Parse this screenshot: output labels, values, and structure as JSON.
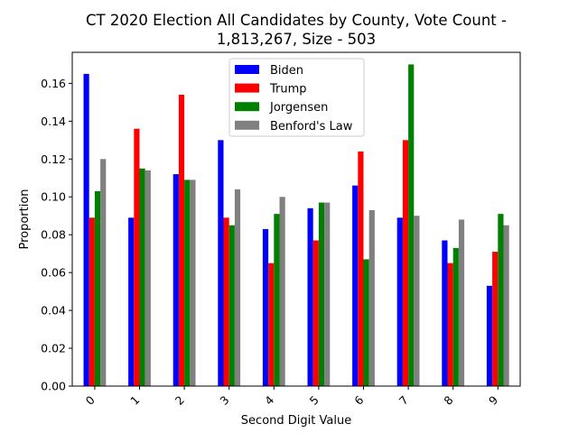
{
  "chart_data": {
    "type": "bar",
    "title": [
      "CT 2020 Election All Candidates by County, Vote Count -",
      "1,813,267, Size - 503"
    ],
    "xlabel": "Second Digit Value",
    "ylabel": "Proportion",
    "categories": [
      "0",
      "1",
      "2",
      "3",
      "4",
      "5",
      "6",
      "7",
      "8",
      "9"
    ],
    "ylim": [
      0,
      0.1764
    ],
    "yticks": [
      "0.00",
      "0.02",
      "0.04",
      "0.06",
      "0.08",
      "0.10",
      "0.12",
      "0.14",
      "0.16"
    ],
    "legend_position": "top-center",
    "series": [
      {
        "name": "Biden",
        "color": "#0000ff",
        "values": [
          0.165,
          0.089,
          0.112,
          0.13,
          0.083,
          0.094,
          0.106,
          0.089,
          0.077,
          0.053
        ]
      },
      {
        "name": "Trump",
        "color": "#ff0000",
        "values": [
          0.089,
          0.136,
          0.154,
          0.089,
          0.065,
          0.077,
          0.124,
          0.13,
          0.065,
          0.071
        ]
      },
      {
        "name": "Jorgensen",
        "color": "#008000",
        "values": [
          0.103,
          0.115,
          0.109,
          0.085,
          0.091,
          0.097,
          0.067,
          0.17,
          0.073,
          0.091
        ]
      },
      {
        "name": "Benford's Law",
        "color": "#808080",
        "values": [
          0.12,
          0.114,
          0.109,
          0.104,
          0.1,
          0.097,
          0.093,
          0.09,
          0.088,
          0.085
        ]
      }
    ]
  }
}
